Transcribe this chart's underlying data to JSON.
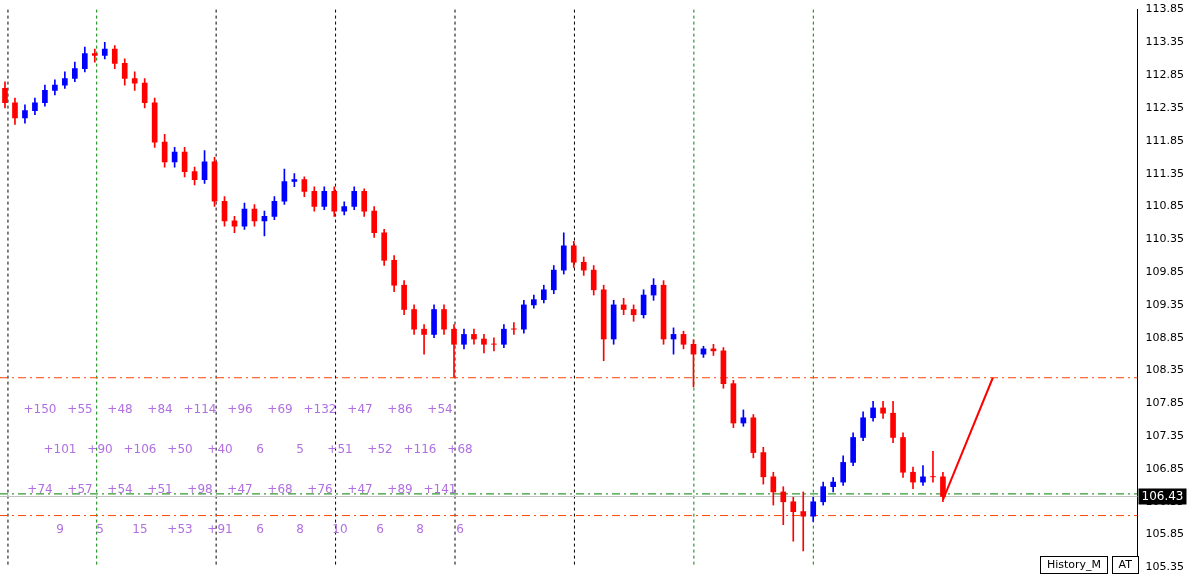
{
  "chart_data": {
    "type": "candlestick",
    "categories": [
      null,
      null,
      null,
      null,
      null,
      null,
      null,
      null,
      null,
      null,
      null,
      null,
      null,
      null,
      null,
      null,
      null,
      null,
      null,
      null,
      null,
      null,
      null,
      null,
      null,
      null,
      null,
      null,
      null,
      null,
      null,
      null,
      null,
      null,
      null,
      null,
      null,
      null,
      null,
      null,
      null,
      null,
      null,
      null,
      null,
      null,
      null,
      null,
      null,
      null,
      null,
      null,
      null,
      null,
      null,
      null,
      null,
      null,
      null,
      null,
      null,
      null,
      null,
      null,
      null,
      null,
      null,
      null,
      null,
      null,
      null,
      null,
      null,
      null,
      null,
      null,
      null,
      null,
      null,
      null,
      null,
      null,
      null,
      null,
      null,
      null,
      null,
      null,
      null,
      null,
      null,
      null,
      null,
      null,
      null,
      null,
      null,
      null,
      null,
      null,
      null,
      null,
      null,
      null,
      null,
      null,
      null,
      null,
      null,
      null,
      null,
      null,
      null,
      null
    ],
    "ohlc": [
      [
        112.65,
        112.75,
        112.35,
        112.43
      ],
      [
        112.43,
        112.5,
        112.1,
        112.2
      ],
      [
        112.2,
        112.4,
        112.12,
        112.31
      ],
      [
        112.31,
        112.5,
        112.25,
        112.43
      ],
      [
        112.43,
        112.7,
        112.38,
        112.62
      ],
      [
        112.62,
        112.78,
        112.55,
        112.7
      ],
      [
        112.7,
        112.9,
        112.65,
        112.8
      ],
      [
        112.8,
        113.05,
        112.75,
        112.95
      ],
      [
        112.95,
        113.28,
        112.9,
        113.18
      ],
      [
        113.18,
        113.25,
        113.05,
        113.15
      ],
      [
        113.15,
        113.35,
        113.1,
        113.25
      ],
      [
        113.25,
        113.3,
        112.95,
        113.03
      ],
      [
        113.03,
        113.1,
        112.7,
        112.8
      ],
      [
        112.8,
        112.9,
        112.62,
        112.73
      ],
      [
        112.73,
        112.8,
        112.35,
        112.43
      ],
      [
        112.43,
        112.5,
        111.75,
        111.83
      ],
      [
        111.83,
        111.95,
        111.45,
        111.53
      ],
      [
        111.53,
        111.75,
        111.45,
        111.68
      ],
      [
        111.68,
        111.75,
        111.3,
        111.38
      ],
      [
        111.38,
        111.45,
        111.18,
        111.26
      ],
      [
        111.26,
        111.7,
        111.2,
        111.53
      ],
      [
        111.53,
        111.6,
        110.85,
        110.93
      ],
      [
        110.93,
        111.0,
        110.55,
        110.63
      ],
      [
        110.63,
        110.7,
        110.45,
        110.55
      ],
      [
        110.55,
        110.9,
        110.5,
        110.81
      ],
      [
        110.81,
        110.88,
        110.55,
        110.63
      ],
      [
        110.63,
        110.78,
        110.4,
        110.7
      ],
      [
        110.7,
        111.0,
        110.65,
        110.93
      ],
      [
        110.93,
        111.42,
        110.88,
        111.23
      ],
      [
        111.23,
        111.35,
        111.15,
        111.26
      ],
      [
        111.26,
        111.3,
        111.0,
        111.08
      ],
      [
        111.08,
        111.15,
        110.78,
        110.85
      ],
      [
        110.85,
        111.15,
        110.8,
        111.08
      ],
      [
        111.08,
        111.15,
        110.7,
        110.78
      ],
      [
        110.78,
        110.92,
        110.72,
        110.85
      ],
      [
        110.85,
        111.15,
        110.8,
        111.08
      ],
      [
        111.08,
        111.12,
        110.7,
        110.78
      ],
      [
        110.78,
        110.85,
        110.38,
        110.45
      ],
      [
        110.45,
        110.5,
        109.95,
        110.03
      ],
      [
        110.03,
        110.1,
        109.55,
        109.65
      ],
      [
        109.65,
        109.72,
        109.2,
        109.28
      ],
      [
        109.28,
        109.35,
        108.9,
        108.98
      ],
      [
        108.98,
        109.05,
        108.6,
        108.9
      ],
      [
        108.9,
        109.35,
        108.85,
        109.28
      ],
      [
        109.28,
        109.35,
        108.9,
        108.98
      ],
      [
        108.98,
        109.05,
        108.25,
        108.75
      ],
      [
        108.75,
        108.98,
        108.68,
        108.9
      ],
      [
        108.9,
        108.98,
        108.75,
        108.83
      ],
      [
        108.83,
        108.9,
        108.62,
        108.75
      ],
      [
        108.75,
        108.85,
        108.65,
        108.75
      ],
      [
        108.75,
        109.05,
        108.7,
        108.98
      ],
      [
        108.98,
        109.08,
        108.9,
        108.98
      ],
      [
        108.98,
        109.42,
        108.92,
        109.35
      ],
      [
        109.35,
        109.5,
        109.3,
        109.43
      ],
      [
        109.43,
        109.65,
        109.38,
        109.58
      ],
      [
        109.58,
        109.95,
        109.52,
        109.88
      ],
      [
        109.88,
        110.45,
        109.82,
        110.25
      ],
      [
        110.25,
        110.32,
        109.92,
        110.0
      ],
      [
        110.0,
        110.08,
        109.8,
        109.88
      ],
      [
        109.88,
        109.95,
        109.5,
        109.58
      ],
      [
        109.58,
        109.65,
        108.5,
        108.83
      ],
      [
        108.83,
        109.42,
        108.75,
        109.35
      ],
      [
        109.35,
        109.45,
        109.2,
        109.28
      ],
      [
        109.28,
        109.35,
        109.1,
        109.2
      ],
      [
        109.2,
        109.58,
        109.15,
        109.5
      ],
      [
        109.5,
        109.75,
        109.42,
        109.65
      ],
      [
        109.65,
        109.72,
        108.75,
        108.83
      ],
      [
        108.83,
        109.0,
        108.6,
        108.9
      ],
      [
        108.9,
        108.95,
        108.68,
        108.75
      ],
      [
        108.75,
        108.82,
        108.1,
        108.6
      ],
      [
        108.6,
        108.72,
        108.55,
        108.68
      ],
      [
        108.68,
        108.75,
        108.58,
        108.65
      ],
      [
        108.65,
        108.7,
        108.08,
        108.15
      ],
      [
        108.15,
        108.2,
        107.48,
        107.55
      ],
      [
        107.55,
        107.75,
        107.5,
        107.63
      ],
      [
        107.63,
        107.68,
        107.02,
        107.1
      ],
      [
        107.1,
        107.18,
        106.62,
        106.73
      ],
      [
        106.73,
        106.8,
        106.3,
        106.5
      ],
      [
        106.5,
        106.58,
        106.0,
        106.35
      ],
      [
        106.35,
        106.42,
        105.75,
        106.2
      ],
      [
        106.2,
        106.5,
        105.6,
        106.13
      ],
      [
        106.13,
        106.42,
        106.05,
        106.35
      ],
      [
        106.35,
        106.65,
        106.3,
        106.58
      ],
      [
        106.58,
        106.72,
        106.5,
        106.65
      ],
      [
        106.65,
        107.05,
        106.6,
        106.95
      ],
      [
        106.95,
        107.4,
        106.9,
        107.33
      ],
      [
        107.33,
        107.72,
        107.28,
        107.63
      ],
      [
        107.63,
        107.88,
        107.58,
        107.78
      ],
      [
        107.78,
        107.88,
        107.62,
        107.7
      ],
      [
        107.7,
        107.88,
        107.25,
        107.33
      ],
      [
        107.33,
        107.4,
        106.72,
        106.8
      ],
      [
        106.8,
        106.88,
        106.55,
        106.65
      ],
      [
        106.65,
        106.9,
        106.6,
        106.73
      ],
      [
        106.73,
        107.12,
        106.65,
        106.73
      ],
      [
        106.73,
        106.8,
        106.35,
        106.43
      ],
      null,
      null,
      null,
      null,
      null,
      null,
      null,
      null,
      null,
      null,
      null,
      null,
      null,
      null,
      null,
      null,
      null,
      null,
      null
    ],
    "colors": [
      "#ff0000",
      "#ff0000",
      "#0000ff",
      "#0000ff",
      "#0000ff",
      "#0000ff",
      "#0000ff",
      "#0000ff",
      "#0000ff",
      "#ff0000",
      "#0000ff",
      "#ff0000",
      "#ff0000",
      "#ff0000",
      "#ff0000",
      "#ff0000",
      "#ff0000",
      "#0000ff",
      "#ff0000",
      "#ff0000",
      "#0000ff",
      "#ff0000",
      "#ff0000",
      "#ff0000",
      "#0000ff",
      "#ff0000",
      "#0000ff",
      "#0000ff",
      "#0000ff",
      "#0000ff",
      "#ff0000",
      "#ff0000",
      "#0000ff",
      "#ff0000",
      "#0000ff",
      "#0000ff",
      "#ff0000",
      "#ff0000",
      "#ff0000",
      "#ff0000",
      "#ff0000",
      "#ff0000",
      "#ff0000",
      "#0000ff",
      "#ff0000",
      "#ff0000",
      "#0000ff",
      "#ff0000",
      "#ff0000",
      "#ff0000",
      "#0000ff",
      "#ff0000",
      "#0000ff",
      "#0000ff",
      "#0000ff",
      "#0000ff",
      "#0000ff",
      "#ff0000",
      "#ff0000",
      "#ff0000",
      "#ff0000",
      "#0000ff",
      "#ff0000",
      "#ff0000",
      "#0000ff",
      "#0000ff",
      "#ff0000",
      "#0000ff",
      "#ff0000",
      "#ff0000",
      "#0000ff",
      "#ff0000",
      "#ff0000",
      "#ff0000",
      "#0000ff",
      "#ff0000",
      "#ff0000",
      "#ff0000",
      "#ff0000",
      "#ff0000",
      "#ff0000",
      "#0000ff",
      "#0000ff",
      "#0000ff",
      "#0000ff",
      "#0000ff",
      "#0000ff",
      "#0000ff",
      "#ff0000",
      "#ff0000",
      "#ff0000",
      "#ff0000",
      "#0000ff",
      "#ff0000",
      "#ff0000",
      null,
      null,
      null,
      null,
      null,
      null,
      null,
      null,
      null,
      null,
      null,
      null,
      null,
      null,
      null,
      null,
      null,
      null,
      null
    ],
    "series": [
      {
        "type": "line",
        "color": "#ff0000",
        "values": [
          null,
          null,
          null,
          null,
          null,
          null,
          null,
          null,
          null,
          null,
          null,
          null,
          null,
          null,
          null,
          null,
          null,
          null,
          null,
          null,
          null,
          null,
          null,
          null,
          null,
          null,
          null,
          null,
          null,
          null,
          null,
          null,
          null,
          null,
          null,
          null,
          null,
          null,
          null,
          null,
          null,
          null,
          null,
          null,
          null,
          null,
          null,
          null,
          null,
          null,
          null,
          null,
          null,
          null,
          null,
          null,
          null,
          null,
          null,
          null,
          null,
          null,
          null,
          null,
          null,
          null,
          null,
          null,
          null,
          null,
          null,
          null,
          null,
          null,
          null,
          null,
          null,
          null,
          null,
          null,
          null,
          null,
          null,
          null,
          null,
          null,
          null,
          null,
          null,
          null,
          null,
          null,
          null,
          null,
          106.38,
          null,
          null,
          null,
          null,
          108.24,
          null,
          null,
          null,
          null,
          null,
          null,
          null,
          null,
          null,
          null,
          null,
          null,
          null,
          null
        ]
      }
    ],
    "ylim": [
      105.35,
      113.85
    ],
    "yticks": [
      105.35,
      105.85,
      106.35,
      106.85,
      107.35,
      107.85,
      108.35,
      108.85,
      109.35,
      109.85,
      110.35,
      110.85,
      111.35,
      111.85,
      112.35,
      112.85,
      113.35,
      113.85
    ],
    "tick_labels": "y",
    "ref_lines": [
      {
        "axis": "y",
        "value": 108.24,
        "color": "#ff4500",
        "line_style": "dashed"
      },
      {
        "axis": "y",
        "value": 106.47,
        "color": "#008000",
        "line_style": "dashed"
      },
      {
        "axis": "y",
        "value": 106.43,
        "label": "106.43",
        "color": "#c0c0c0"
      },
      {
        "axis": "y",
        "value": 106.14,
        "color": "#ff4500",
        "line_style": "dashed"
      }
    ],
    "annotations": [
      "+150",
      "+55",
      "+48",
      "+84",
      "+114",
      "+96",
      "+69",
      "+132",
      "+47",
      "+86",
      "+54",
      "+101",
      "+90",
      "+106",
      "+50",
      "+40",
      "6",
      "5",
      "+51",
      "+52",
      "+116",
      "+68",
      "+74",
      "+57",
      "+54",
      "+51",
      "+98",
      "+47",
      "+68",
      "+76",
      "+47",
      "+89",
      "+141",
      "9",
      "5",
      "15",
      "+53",
      "+91",
      "6",
      "8",
      "10",
      "6",
      "8",
      "6",
      "History_M",
      "AT"
    ]
  }
}
